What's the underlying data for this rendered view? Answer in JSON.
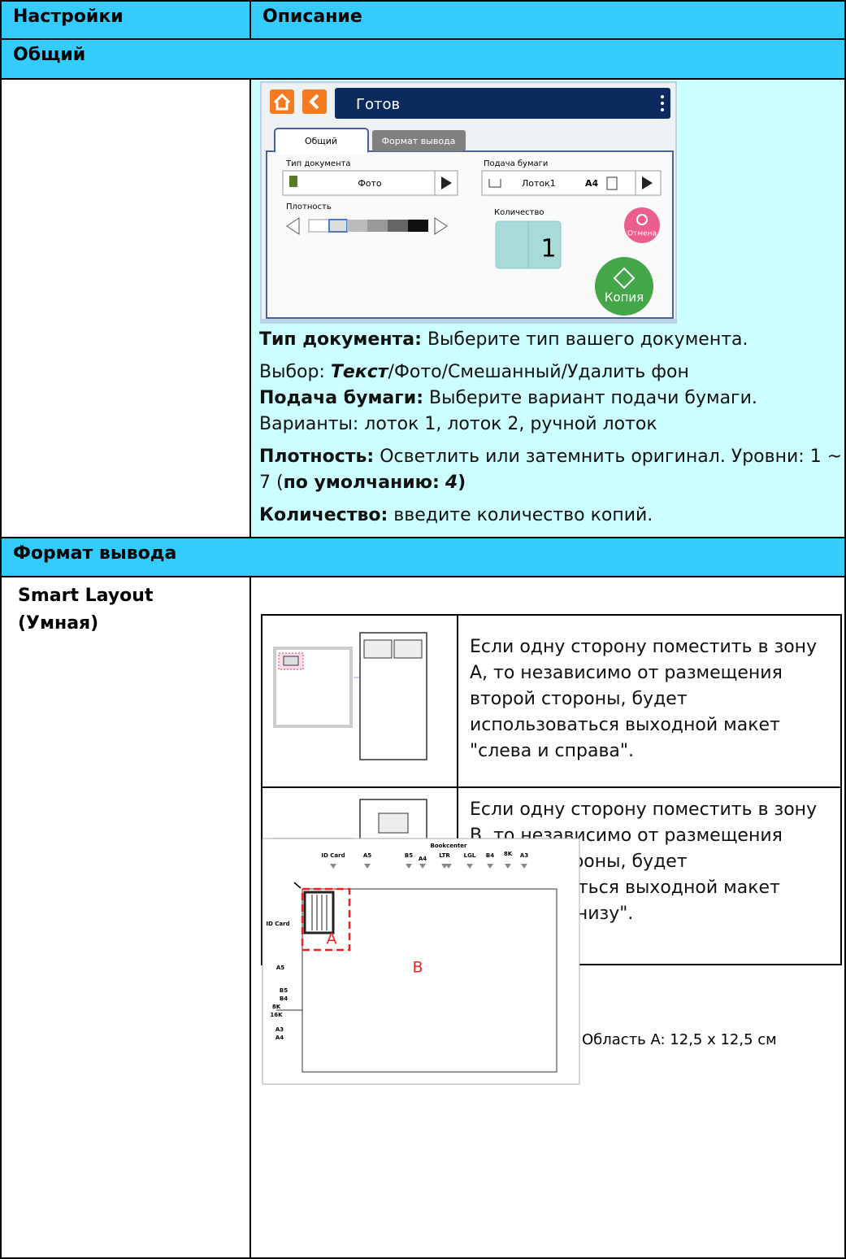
{
  "table": {
    "header": [
      "Настройки",
      "Описание"
    ],
    "general": {
      "title": "Общий",
      "screen": {
        "status": "Готов",
        "tabs": [
          "Общий",
          "Формат вывода"
        ],
        "doc_type_label": "Тип документа",
        "doc_type_value": "Фото",
        "paper_label": "Подача бумаги",
        "tray": "Лоток1",
        "size": "A4",
        "density_label": "Плотность",
        "quantity_label": "Количество",
        "quantity": "1",
        "cancel": "Отмена",
        "copy": "Копия"
      },
      "doc_type": {
        "label": "Тип документа:",
        "text": "Выберите тип вашего документа."
      },
      "choice": {
        "label": "Выбор:",
        "default": "Текст",
        "rest": "/Фото/Смешанный/Удалить фон"
      },
      "paper_feed": {
        "label": "Подача бумаги:",
        "text": "Выберите вариант подачи бумаги. Варианты: лоток 1, лоток 2, ручной лоток"
      },
      "density": {
        "label": "Плотность:",
        "text": "Осветлить или затемнить оригинал. Уровни: 1 ~ 7 (",
        "default_label": "по умолчанию:",
        "default_value": "4",
        "close": ")"
      },
      "quantity": {
        "label": "Количество:",
        "text": "введите количество копий."
      }
    },
    "output": {
      "title": "Формат вывода",
      "setting": "Smart Layout (Умная)",
      "cases": [
        "Если одну сторону поместить в зону А, то независимо от размещения второй стороны, будет использоваться выходной макет \"слева и справа\".",
        "Если одну сторону поместить в зону В, то независимо от размещения второй стороны, будет использоваться выходной макет \"вверху и внизу\"."
      ],
      "diagram": {
        "zone_a": "A",
        "zone_b": "B",
        "top_labels": [
          "ID Card",
          "A5",
          "B5",
          "A4",
          "Bookcenter",
          "LTR",
          "LGL",
          "B4",
          "8K",
          "A3"
        ],
        "left_labels": [
          "ID Card",
          "A5",
          "B5",
          "B4",
          "8K",
          "16K",
          "A3",
          "A4"
        ]
      },
      "area_note": "Область A: 12,5 x 12,5 см"
    }
  }
}
